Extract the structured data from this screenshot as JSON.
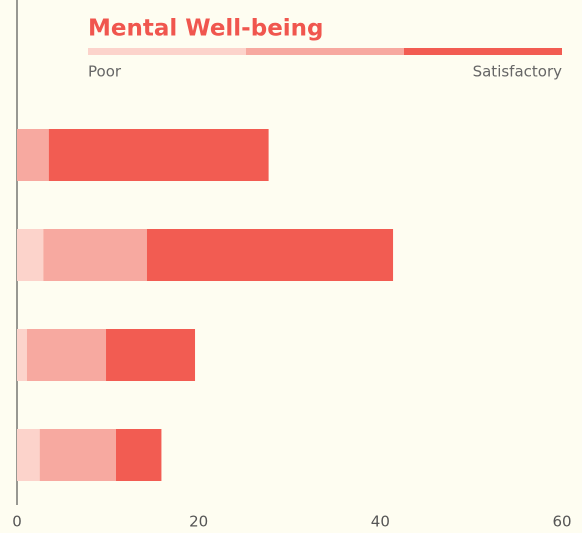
{
  "chart_data": {
    "type": "stacked-barh",
    "title": "Mental Well-being",
    "legend": {
      "labels": [
        "Poor",
        "Satisfactory"
      ]
    },
    "categories": [
      null,
      null,
      null,
      null
    ],
    "series": [
      {
        "color": "#fcd3cb",
        "values": [
          0,
          2.9,
          1.1,
          2.5
        ]
      },
      {
        "color": "#f7a9a0",
        "values": [
          3.5,
          11.4,
          8.7,
          8.4
        ]
      },
      {
        "color": "#f25c52",
        "values": [
          24.2,
          27.1,
          9.8,
          5.0
        ]
      }
    ],
    "xlim": [
      0,
      60
    ],
    "xticks": [
      0,
      20,
      40,
      60
    ],
    "grid": false
  }
}
